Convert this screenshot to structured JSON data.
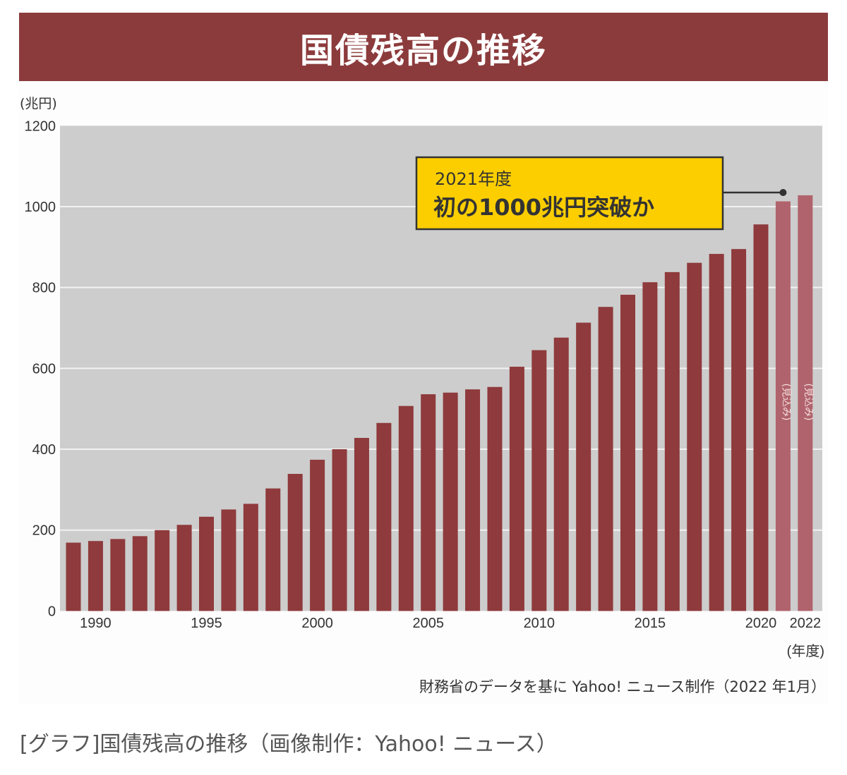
{
  "header": {
    "title": "国債残高の推移"
  },
  "chart_data": {
    "type": "bar",
    "title": "国債残高の推移",
    "ylabel": "(兆円)",
    "xlabel": "(年度)",
    "ylim": [
      0,
      1200
    ],
    "yticks": [
      0,
      200,
      400,
      600,
      800,
      1000,
      1200
    ],
    "grid": true,
    "x_tick_labels": [
      "1990",
      "1995",
      "2000",
      "2005",
      "2010",
      "2015",
      "2020",
      "2022"
    ],
    "categories": [
      1989,
      1990,
      1991,
      1992,
      1993,
      1994,
      1995,
      1996,
      1997,
      1998,
      1999,
      2000,
      2001,
      2002,
      2003,
      2004,
      2005,
      2006,
      2007,
      2008,
      2009,
      2010,
      2011,
      2012,
      2013,
      2014,
      2015,
      2016,
      2017,
      2018,
      2019,
      2020,
      2021,
      2022
    ],
    "values": [
      169,
      173,
      178,
      185,
      200,
      213,
      233,
      251,
      265,
      303,
      339,
      374,
      400,
      428,
      465,
      507,
      536,
      540,
      548,
      554,
      604,
      645,
      676,
      713,
      752,
      782,
      813,
      838,
      861,
      883,
      895,
      956,
      1013,
      1028
    ],
    "projected": [
      2021,
      2022
    ],
    "projected_label": "(見込み)",
    "annotation": {
      "line1": "2021年度",
      "line2": "初の1000兆円突破か",
      "target_year": 2021
    },
    "colors": {
      "bar": "#8f3a3c",
      "bar_projected": "#b0636c",
      "plot_bg": "#cdcdcd",
      "gridline": "#f2f2f2",
      "header_bg": "#8c3b3c",
      "callout_bg": "#fcce00",
      "callout_border": "#333333"
    }
  },
  "footer": {
    "source": "財務省のデータを基に Yahoo! ニュース制作（2022 年1月）"
  },
  "caption": "[グラフ]国債残高の推移（画像制作：Yahoo! ニュース）"
}
